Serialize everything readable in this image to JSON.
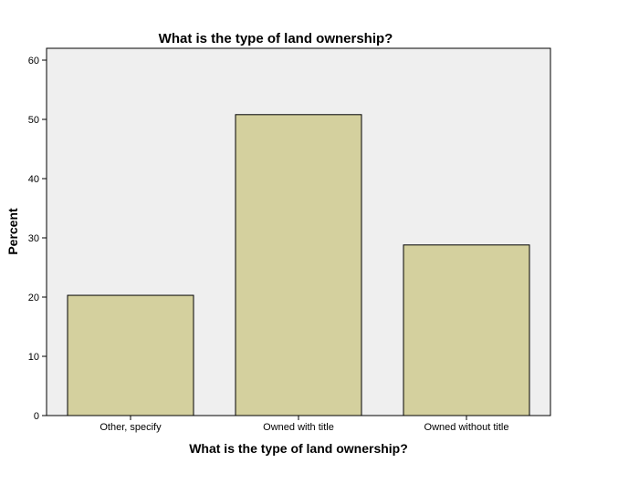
{
  "chart_data": {
    "type": "bar",
    "title": "What is the type of land ownership?",
    "xlabel": "What is the type of land ownership?",
    "ylabel": "Percent",
    "categories": [
      "Other, specify",
      "Owned with title",
      "Owned without title"
    ],
    "values": [
      20.3,
      50.8,
      28.8
    ],
    "ylim": [
      0,
      62
    ],
    "yticks": [
      0,
      10,
      20,
      30,
      40,
      50,
      60
    ],
    "grid": false,
    "legend": "none"
  },
  "colors": {
    "bar_fill": "#d4d09e",
    "bar_stroke": "#000000",
    "plot_background": "#efefef",
    "page_background": "#ffffff"
  }
}
